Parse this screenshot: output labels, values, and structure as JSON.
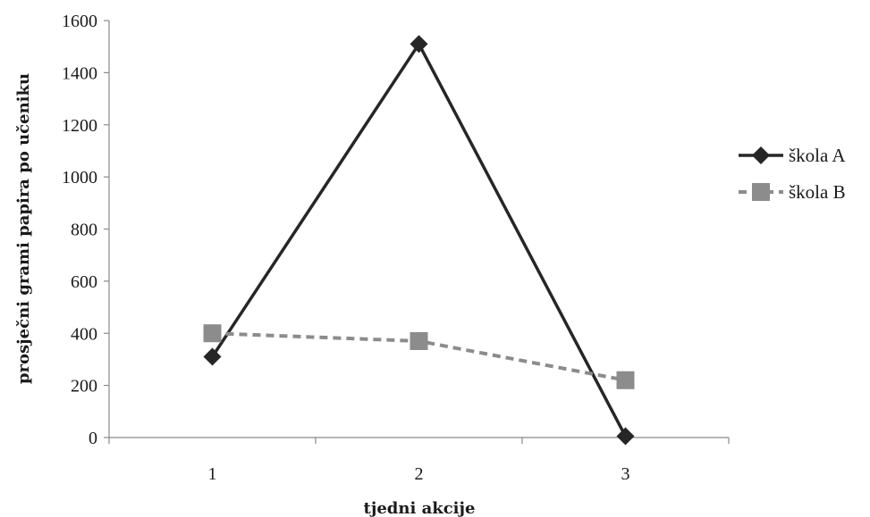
{
  "chart_data": {
    "type": "line",
    "title": "",
    "xlabel": "tjedni akcije",
    "ylabel": "prosječni grami papira po učeniku",
    "categories": [
      "1",
      "2",
      "3"
    ],
    "ylim": [
      0,
      1600
    ],
    "yticks": [
      0,
      200,
      400,
      600,
      800,
      1000,
      1200,
      1400,
      1600
    ],
    "grid": false,
    "legend_position": "right",
    "series": [
      {
        "name": "škola A",
        "values": [
          310,
          1510,
          5
        ],
        "color": "#262626",
        "line_style": "solid",
        "marker": "diamond"
      },
      {
        "name": "škola B",
        "values": [
          400,
          370,
          220
        ],
        "color": "#8c8c8c",
        "line_style": "dashed",
        "marker": "square"
      }
    ]
  }
}
